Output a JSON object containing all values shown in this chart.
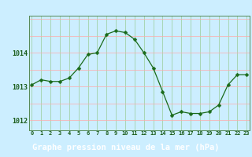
{
  "x": [
    0,
    1,
    2,
    3,
    4,
    5,
    6,
    7,
    8,
    9,
    10,
    11,
    12,
    13,
    14,
    15,
    16,
    17,
    18,
    19,
    20,
    21,
    22,
    23
  ],
  "y": [
    1013.05,
    1013.2,
    1013.15,
    1013.15,
    1013.25,
    1013.55,
    1013.95,
    1014.0,
    1014.55,
    1014.65,
    1014.6,
    1014.4,
    1014.0,
    1013.55,
    1012.85,
    1012.15,
    1012.25,
    1012.2,
    1012.2,
    1012.25,
    1012.45,
    1013.05,
    1013.35,
    1013.35
  ],
  "line_color": "#1a6b1a",
  "marker": "D",
  "marker_size": 2.5,
  "bg_color": "#cceeff",
  "plot_bg": "#cceeff",
  "grid_h_color": "#ffaaaa",
  "grid_v_color": "#99cc99",
  "xlabel": "Graphe pression niveau de la mer (hPa)",
  "xlabel_fontsize": 7.5,
  "xlabel_color": "#ffffff",
  "xlabel_bg": "#2d6a2d",
  "tick_color": "#1a5c1a",
  "ylim": [
    1011.7,
    1015.1
  ],
  "yticks": [
    1012,
    1013,
    1014
  ],
  "xlim": [
    -0.3,
    23.3
  ],
  "xticks": [
    0,
    1,
    2,
    3,
    4,
    5,
    6,
    7,
    8,
    9,
    10,
    11,
    12,
    13,
    14,
    15,
    16,
    17,
    18,
    19,
    20,
    21,
    22,
    23
  ],
  "spine_color": "#558855",
  "hgrid_vals": [
    1011.5,
    1012.0,
    1012.5,
    1013.0,
    1013.5,
    1014.0,
    1014.5,
    1015.0
  ]
}
